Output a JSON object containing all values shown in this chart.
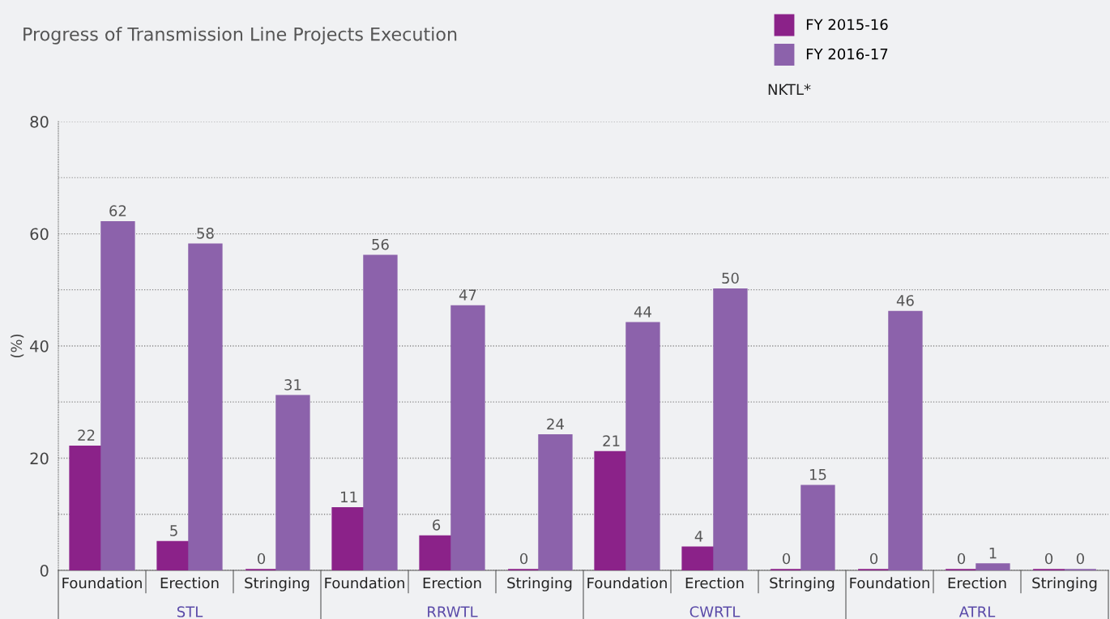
{
  "chart_data": {
    "type": "bar",
    "title": "Progress of Transmission Line Projects Execution",
    "ylabel": "(%)",
    "categories": [
      "Foundation",
      "Erection",
      "Stringing",
      "Foundation",
      "Erection",
      "Stringing",
      "Foundation",
      "Erection",
      "Stringing",
      "Foundation",
      "Erection",
      "Stringing"
    ],
    "annotations": [
      "STL",
      "RRWTL",
      "CWRTL",
      "ATRL"
    ],
    "legend_title": "NKTL*",
    "series": [
      {
        "name": "FY 2015-16",
        "color": "#8b2289",
        "values": [
          22,
          5,
          0,
          11,
          6,
          0,
          21,
          4,
          0,
          0,
          0,
          0
        ]
      },
      {
        "name": "FY 2016-17",
        "color": "#8c62ab",
        "values": [
          62,
          58,
          31,
          56,
          47,
          24,
          44,
          50,
          15,
          46,
          1,
          0
        ]
      }
    ],
    "ylim": [
      0,
      80
    ],
    "yticks": [
      0,
      {
        "value": 10,
        "label": null
      },
      20,
      {
        "value": 30,
        "label": null
      },
      40,
      {
        "value": 50,
        "label": null
      },
      60,
      {
        "value": 70,
        "label": null
      },
      80
    ],
    "grid": "y",
    "legend": "top right",
    "data_labels": true
  }
}
